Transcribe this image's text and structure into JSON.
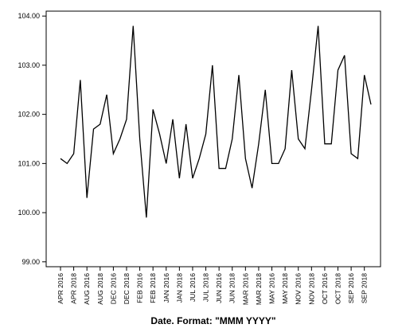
{
  "chart_data": {
    "type": "line",
    "title": "",
    "xlabel": "Date.  Format:  \"MMM YYYY\"",
    "ylabel": "",
    "ylim": [
      98.9,
      104.1
    ],
    "yticks": [
      99.0,
      100.0,
      101.0,
      102.0,
      103.0,
      104.0
    ],
    "ytick_labels": [
      "99.00",
      "100.00",
      "101.00",
      "102.00",
      "103.00",
      "104.00"
    ],
    "grid": false,
    "legend": "none",
    "line_color": "#000000",
    "xtick_labels": [
      "APR 2016",
      "APR 2018",
      "AUG 2016",
      "AUG 2018",
      "DEC 2016",
      "DEC 2018",
      "FEB 2016",
      "FEB 2018",
      "JAN 2016",
      "JAN 2018",
      "JUL 2016",
      "JUL 2018",
      "JUN 2016",
      "JUN 2018",
      "MAR 2016",
      "MAR 2018",
      "MAY 2016",
      "MAY 2018",
      "NOV 2016",
      "NOV 2018",
      "OCT 2016",
      "OCT 2018",
      "SEP 2016",
      "SEP 2018"
    ],
    "series": [
      {
        "values": [
          101.1,
          101.0,
          101.2,
          102.7,
          100.3,
          101.7,
          101.8,
          102.4,
          101.2,
          101.5,
          101.9,
          103.8,
          101.5,
          99.9,
          102.1,
          101.6,
          101.0,
          101.9,
          100.7,
          101.8,
          100.7,
          101.1,
          101.6,
          103.0,
          100.9,
          100.9,
          101.5,
          102.8,
          101.1,
          100.5,
          101.4,
          102.5,
          101.0,
          101.0,
          101.3,
          102.9,
          101.5,
          101.3,
          102.5,
          103.8,
          101.4,
          101.4,
          102.9,
          103.2,
          101.2,
          101.1,
          102.8,
          102.2
        ]
      }
    ]
  }
}
